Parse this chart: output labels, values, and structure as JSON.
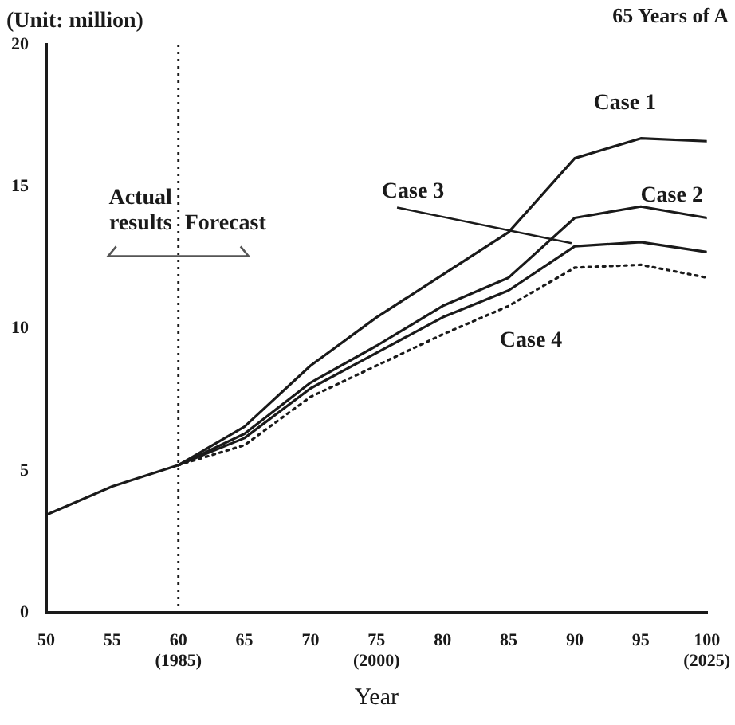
{
  "chart_data": {
    "type": "line",
    "title": "65 Years of A",
    "xlabel": "Year",
    "ylabel": "(Unit: million)",
    "xlim": [
      50,
      100
    ],
    "xticks": [
      50,
      55,
      {
        "value": 60,
        "label": "60\n(1985)"
      },
      65,
      70,
      {
        "value": 75,
        "label": "75\n(2000)"
      },
      80,
      85,
      90,
      95,
      {
        "value": 100,
        "label": "100\n(2025)"
      }
    ],
    "ylim": [
      0,
      20
    ],
    "yticks": [
      0,
      5,
      10,
      15,
      20
    ],
    "grid": false,
    "legend": false,
    "marker": "none",
    "series": [
      {
        "name": "Case 1",
        "color": "#1a1a1a",
        "x": [
          50,
          55,
          60,
          65,
          70,
          75,
          80,
          85,
          90,
          95,
          100
        ],
        "values": [
          3.45,
          4.45,
          5.2,
          6.55,
          8.7,
          10.4,
          11.9,
          13.4,
          16.0,
          16.7,
          16.6
        ],
        "line_style": "solid"
      },
      {
        "name": "Case 2",
        "color": "#1a1a1a",
        "x": [
          60,
          65,
          70,
          75,
          80,
          85,
          90,
          95,
          100
        ],
        "values": [
          5.2,
          6.3,
          8.1,
          9.4,
          10.8,
          11.8,
          13.9,
          14.3,
          13.9
        ],
        "line_style": "solid"
      },
      {
        "name": "Case 3",
        "color": "#1a1a1a",
        "x": [
          60,
          65,
          70,
          75,
          80,
          85,
          90,
          95,
          100
        ],
        "values": [
          5.2,
          6.15,
          7.9,
          9.15,
          10.4,
          11.35,
          12.9,
          13.05,
          12.7
        ],
        "line_style": "solid"
      },
      {
        "name": "Case 4",
        "color": "#1a1a1a",
        "x": [
          60,
          65,
          70,
          75,
          80,
          85,
          90,
          95,
          100
        ],
        "values": [
          5.2,
          5.9,
          7.6,
          8.7,
          9.8,
          10.8,
          12.15,
          12.25,
          11.8
        ],
        "line_style": "dotted"
      }
    ],
    "ref_lines": [
      {
        "axis": "x",
        "value": 60,
        "line_style": "dotted",
        "color": "#1a1a1a"
      }
    ],
    "annotations": [
      "Actual results",
      "Forecast"
    ]
  }
}
